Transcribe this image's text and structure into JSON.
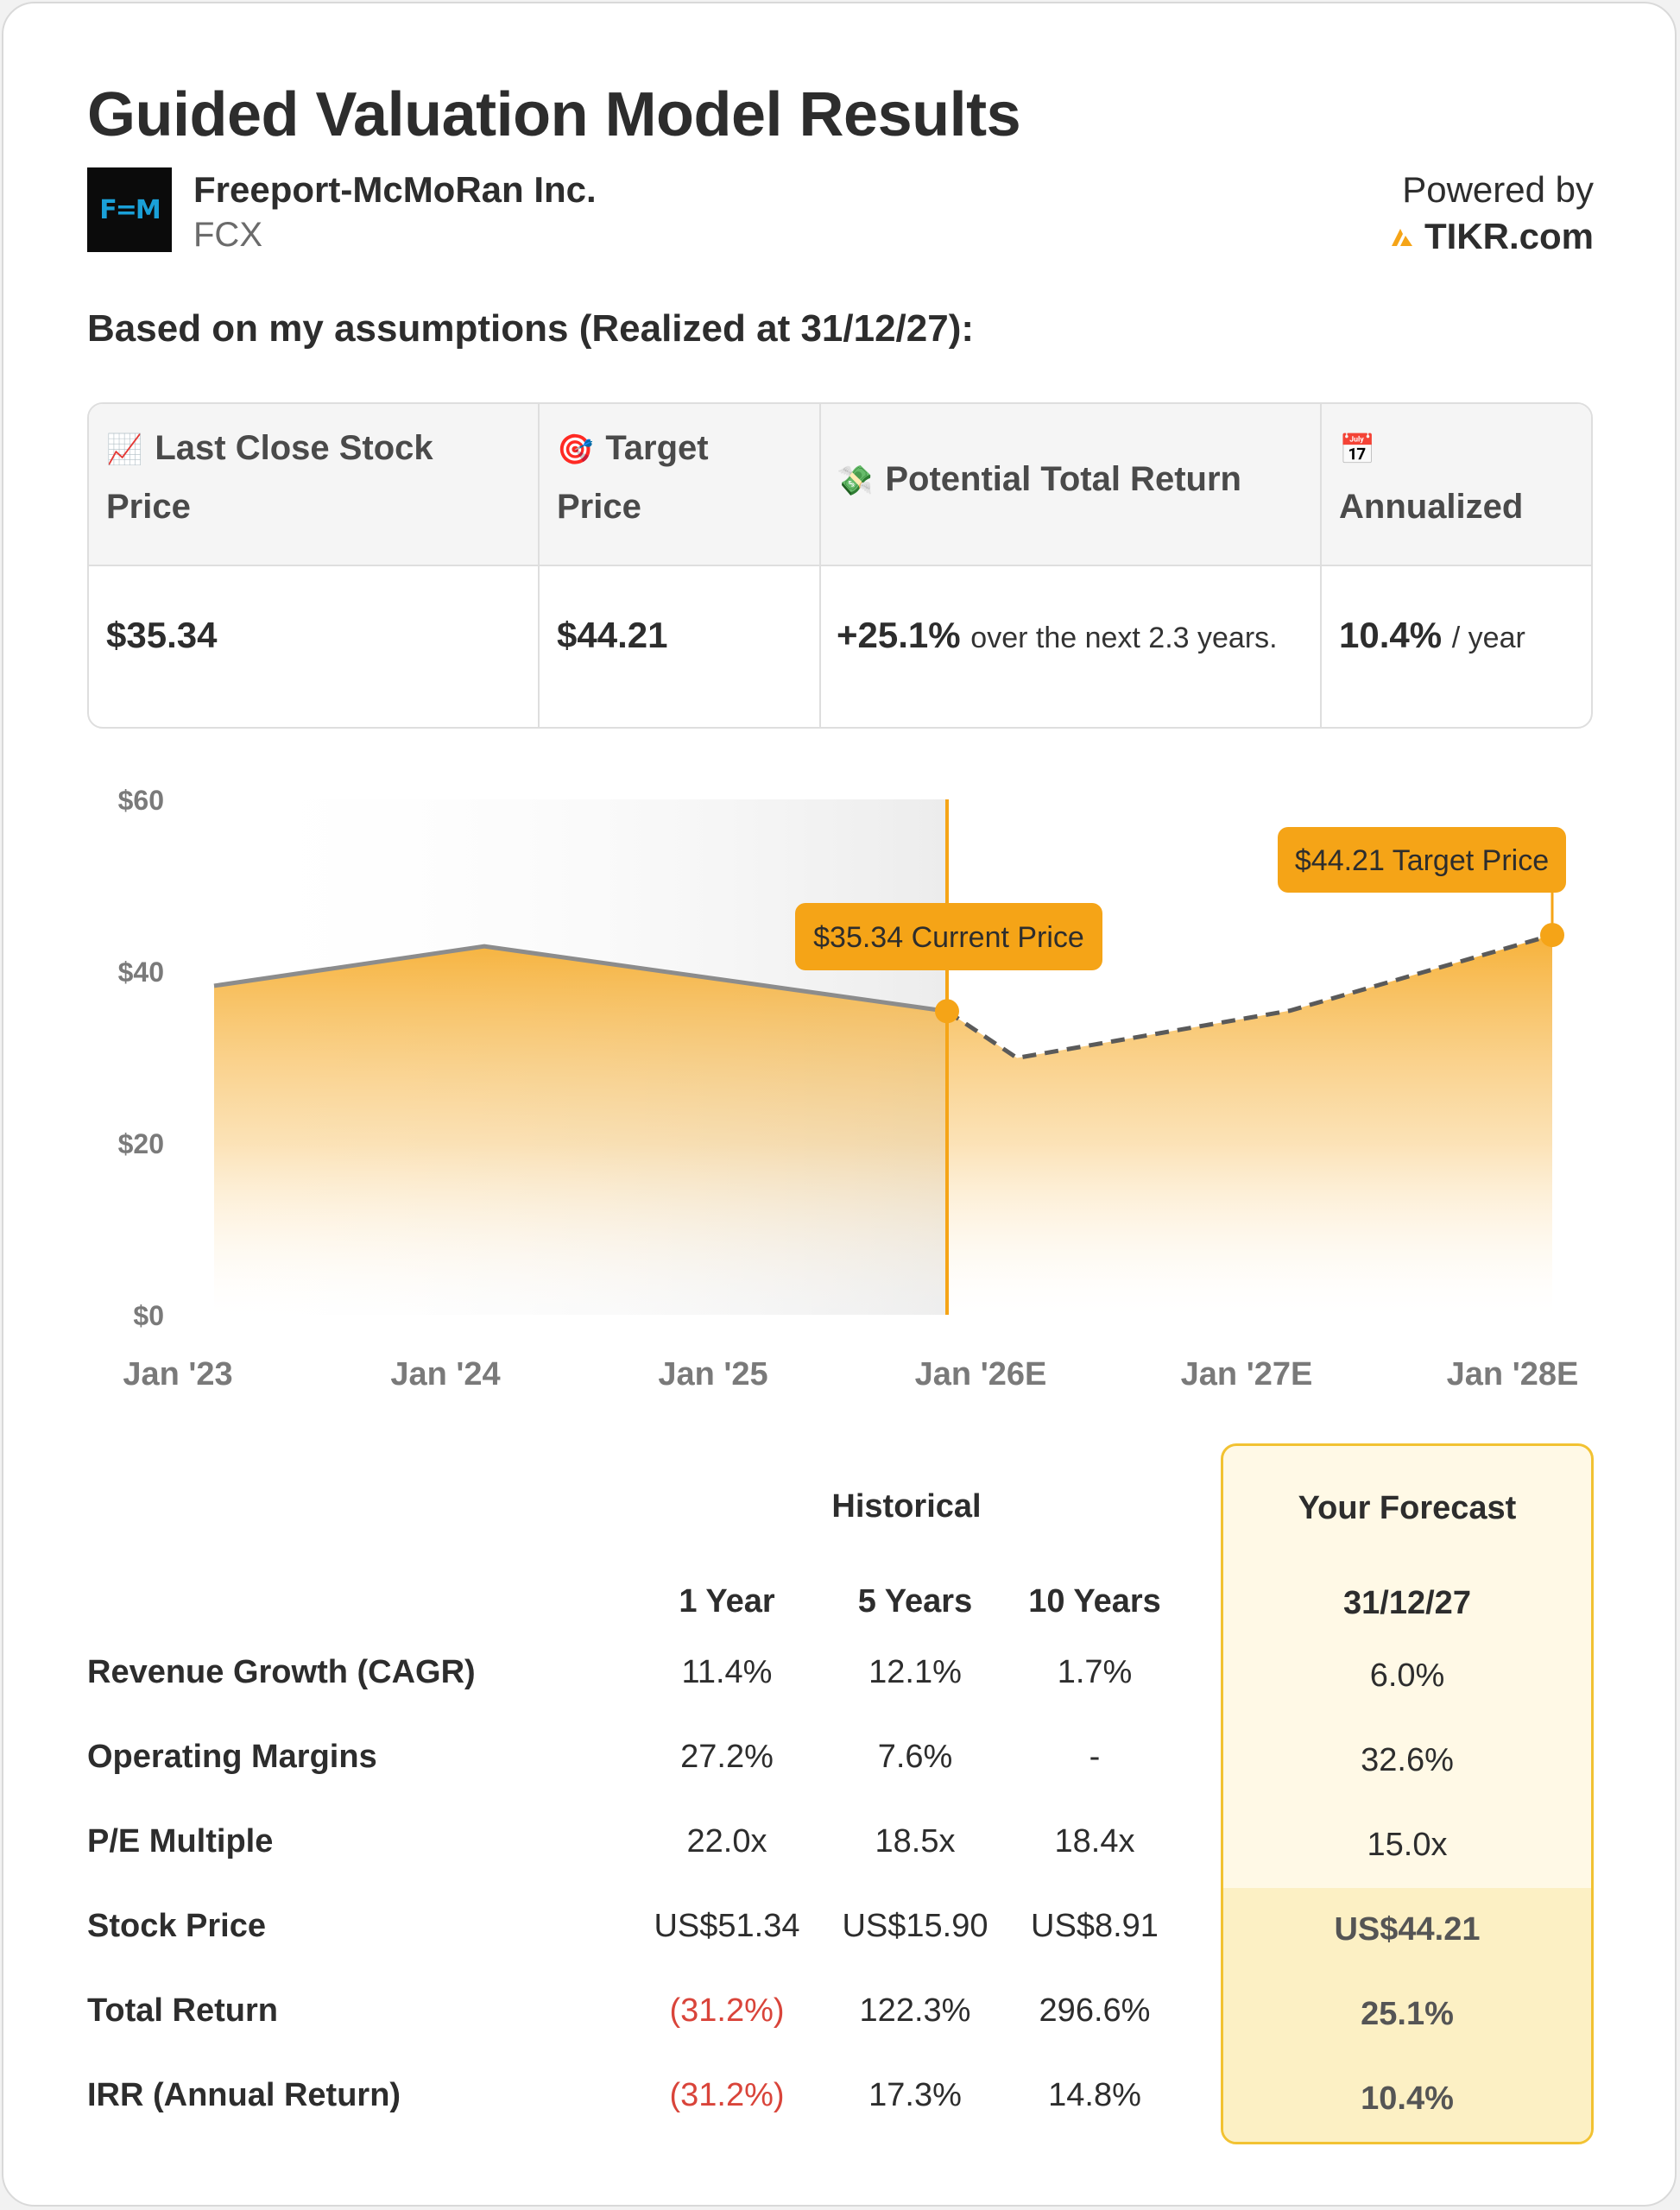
{
  "title": "Guided Valuation Model Results",
  "company": {
    "name": "Freeport-McMoRan Inc.",
    "ticker": "FCX",
    "logo_text": "F=M"
  },
  "powered_by": {
    "label": "Powered by",
    "brand": "TIKR.com"
  },
  "assumptions_text": "Based on my assumptions (Realized at 31/12/27):",
  "summary": {
    "headers": [
      {
        "icon": "📈",
        "icon_name": "chart-increasing-icon",
        "line1": "Last Close Stock",
        "line2": "Price"
      },
      {
        "icon": "🎯",
        "icon_name": "target-icon",
        "line1": "Target",
        "line2": "Price"
      },
      {
        "icon": "💸",
        "icon_name": "money-wings-icon",
        "line1": "Potential Total Return",
        "line2": ""
      },
      {
        "icon": "📅",
        "icon_name": "calendar-icon",
        "line1": "",
        "line2": "Annualized"
      }
    ],
    "values": {
      "last_close": "$35.34",
      "target": "$44.21",
      "total_return": "+25.1%",
      "total_return_suffix": "over the next 2.3 years.",
      "annualized": "10.4%",
      "annualized_suffix": "/ year"
    }
  },
  "chart_data": {
    "type": "area",
    "x_labels": [
      "Jan '23",
      "Jan '24",
      "Jan '25",
      "Jan '26E",
      "Jan '27E",
      "Jan '28E"
    ],
    "y_ticks": [
      "$60",
      "$40",
      "$20",
      "$0"
    ],
    "ylim": [
      0,
      60
    ],
    "historical": [
      {
        "x": "Jan '23",
        "y": 38.3
      },
      {
        "x": "Jan '24",
        "y": 42.9
      },
      {
        "x": "Jan '26E",
        "y": 35.34
      }
    ],
    "forecast": [
      {
        "x": "Jan '26E",
        "y": 35.34
      },
      {
        "x": "Jan '26E",
        "y": 29.9
      },
      {
        "x": "Jan '27E",
        "y": 35.4
      },
      {
        "x": "Jan '28E",
        "y": 44.21
      }
    ],
    "current_label": "$35.34 Current Price",
    "target_label": "$44.21 Target Price",
    "colors": {
      "accent": "#f5a417",
      "historical_line": "#8c8c8c",
      "forecast_line": "#5a5a5a"
    }
  },
  "metrics": {
    "historical_label": "Historical",
    "forecast_label": "Your Forecast",
    "columns": [
      "1 Year",
      "5 Years",
      "10 Years"
    ],
    "forecast_column": "31/12/27",
    "rows": [
      {
        "label": "Revenue Growth (CAGR)",
        "values": [
          "11.4%",
          "12.1%",
          "1.7%"
        ],
        "forecast": "6.0%"
      },
      {
        "label": "Operating Margins",
        "values": [
          "27.2%",
          "7.6%",
          "-"
        ],
        "forecast": "32.6%"
      },
      {
        "label": "P/E Multiple",
        "values": [
          "22.0x",
          "18.5x",
          "18.4x"
        ],
        "forecast": "15.0x"
      },
      {
        "label": "Stock Price",
        "values": [
          "US$51.34",
          "US$15.90",
          "US$8.91"
        ],
        "forecast": "US$44.21"
      },
      {
        "label": "Total Return",
        "values": [
          "(31.2%)",
          "122.3%",
          "296.6%"
        ],
        "forecast": "25.1%"
      },
      {
        "label": "IRR (Annual Return)",
        "values": [
          "(31.2%)",
          "17.3%",
          "14.8%"
        ],
        "forecast": "10.4%"
      }
    ]
  }
}
